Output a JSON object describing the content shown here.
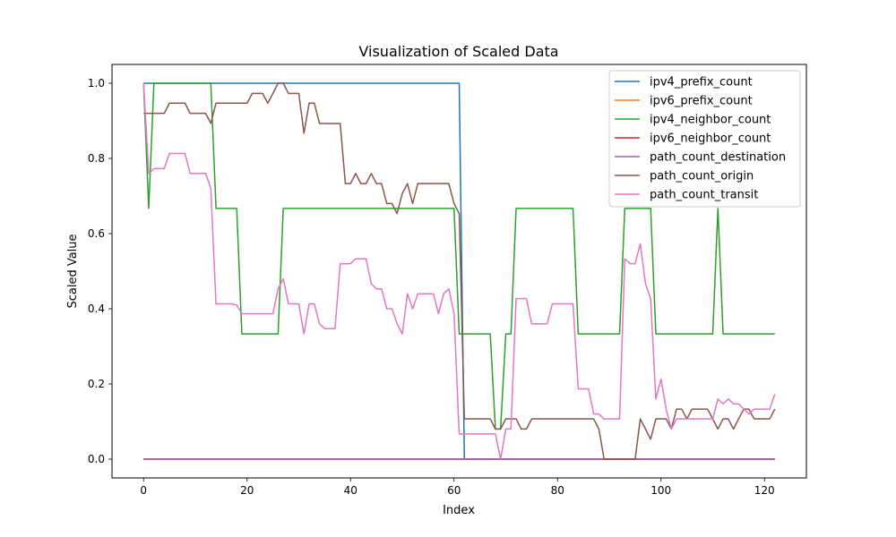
{
  "chart_data": {
    "type": "line",
    "title": "Visualization of Scaled Data",
    "xlabel": "Index",
    "ylabel": "Scaled Value",
    "xlim": [
      -6.1,
      128.1
    ],
    "ylim": [
      -0.05,
      1.05
    ],
    "xticks": [
      0,
      20,
      40,
      60,
      80,
      100,
      120
    ],
    "yticks": [
      0.0,
      0.2,
      0.4,
      0.6,
      0.8,
      1.0
    ],
    "xtick_labels": [
      "0",
      "20",
      "40",
      "60",
      "80",
      "100",
      "120"
    ],
    "ytick_labels": [
      "0.0",
      "0.2",
      "0.4",
      "0.6",
      "0.8",
      "1.0"
    ],
    "grid": false,
    "legend_position": "top-right",
    "series": [
      {
        "name": "ipv4_prefix_count",
        "color": "#1f77b4",
        "x": [
          0,
          61,
          62,
          122
        ],
        "y": [
          1.0,
          1.0,
          0.0,
          0.0
        ]
      },
      {
        "name": "ipv6_prefix_count",
        "color": "#ff7f0e",
        "x": [
          0,
          122
        ],
        "y": [
          0.0,
          0.0
        ]
      },
      {
        "name": "ipv4_neighbor_count",
        "color": "#2ca02c",
        "x": [
          0,
          1,
          2,
          13,
          14,
          18,
          19,
          26,
          27,
          60,
          61,
          67,
          68,
          69,
          70,
          71,
          72,
          83,
          84,
          92,
          93,
          98,
          99,
          110,
          111,
          112,
          122
        ],
        "y": [
          1.0,
          0.667,
          1.0,
          1.0,
          0.667,
          0.667,
          0.333,
          0.333,
          0.667,
          0.667,
          0.333,
          0.333,
          0.08,
          0.08,
          0.333,
          0.333,
          0.667,
          0.667,
          0.333,
          0.333,
          0.667,
          0.667,
          0.333,
          0.333,
          0.667,
          0.333,
          0.333
        ]
      },
      {
        "name": "ipv6_neighbor_count",
        "color": "#d62728",
        "x": [
          0,
          122
        ],
        "y": [
          0.0,
          0.0
        ]
      },
      {
        "name": "path_count_destination",
        "color": "#9467bd",
        "x": [
          0,
          122
        ],
        "y": [
          0.0,
          0.0
        ]
      },
      {
        "name": "path_count_origin",
        "color": "#8c564b",
        "x": [
          0,
          1,
          2,
          3,
          4,
          5,
          6,
          7,
          8,
          9,
          10,
          11,
          12,
          13,
          14,
          15,
          16,
          17,
          18,
          19,
          20,
          21,
          22,
          23,
          24,
          25,
          26,
          27,
          28,
          29,
          30,
          31,
          32,
          33,
          34,
          35,
          36,
          37,
          38,
          39,
          40,
          41,
          42,
          43,
          44,
          45,
          46,
          47,
          48,
          49,
          50,
          51,
          52,
          53,
          54,
          55,
          56,
          57,
          58,
          59,
          60,
          61,
          62,
          63,
          64,
          65,
          66,
          67,
          68,
          69,
          70,
          71,
          72,
          73,
          74,
          75,
          76,
          77,
          78,
          79,
          80,
          81,
          82,
          83,
          84,
          85,
          86,
          87,
          88,
          89,
          90,
          91,
          92,
          93,
          94,
          95,
          96,
          97,
          98,
          99,
          100,
          101,
          102,
          103,
          104,
          105,
          106,
          107,
          108,
          109,
          110,
          111,
          112,
          113,
          114,
          115,
          116,
          117,
          118,
          119,
          120,
          121,
          122
        ],
        "y": [
          0.92,
          0.92,
          0.92,
          0.92,
          0.92,
          0.947,
          0.947,
          0.947,
          0.947,
          0.92,
          0.92,
          0.92,
          0.92,
          0.893,
          0.947,
          0.947,
          0.947,
          0.947,
          0.947,
          0.947,
          0.947,
          0.973,
          0.973,
          0.973,
          0.947,
          0.973,
          1.0,
          1.0,
          0.973,
          0.973,
          0.973,
          0.867,
          0.947,
          0.947,
          0.893,
          0.893,
          0.893,
          0.893,
          0.893,
          0.733,
          0.733,
          0.76,
          0.733,
          0.733,
          0.76,
          0.733,
          0.733,
          0.68,
          0.68,
          0.653,
          0.707,
          0.733,
          0.68,
          0.733,
          0.733,
          0.733,
          0.733,
          0.733,
          0.733,
          0.733,
          0.68,
          0.653,
          0.107,
          0.107,
          0.107,
          0.107,
          0.107,
          0.107,
          0.08,
          0.08,
          0.107,
          0.107,
          0.107,
          0.08,
          0.08,
          0.107,
          0.107,
          0.107,
          0.107,
          0.107,
          0.107,
          0.107,
          0.107,
          0.107,
          0.107,
          0.107,
          0.107,
          0.107,
          0.08,
          0.0,
          0.0,
          0.0,
          0.0,
          0.0,
          0.0,
          0.0,
          0.107,
          0.08,
          0.053,
          0.107,
          0.107,
          0.107,
          0.08,
          0.133,
          0.133,
          0.107,
          0.133,
          0.133,
          0.133,
          0.133,
          0.107,
          0.08,
          0.107,
          0.107,
          0.08,
          0.107,
          0.133,
          0.133,
          0.107,
          0.107,
          0.107,
          0.107,
          0.133
        ]
      },
      {
        "name": "path_count_transit",
        "color": "#e377c2",
        "x": [
          0,
          1,
          2,
          3,
          4,
          5,
          6,
          7,
          8,
          9,
          10,
          11,
          12,
          13,
          14,
          15,
          16,
          17,
          18,
          19,
          20,
          21,
          22,
          23,
          24,
          25,
          26,
          27,
          28,
          29,
          30,
          31,
          32,
          33,
          34,
          35,
          36,
          37,
          38,
          39,
          40,
          41,
          42,
          43,
          44,
          45,
          46,
          47,
          48,
          49,
          50,
          51,
          52,
          53,
          54,
          55,
          56,
          57,
          58,
          59,
          60,
          61,
          62,
          63,
          64,
          65,
          66,
          67,
          68,
          69,
          70,
          71,
          72,
          73,
          74,
          75,
          76,
          77,
          78,
          79,
          80,
          81,
          82,
          83,
          84,
          85,
          86,
          87,
          88,
          89,
          90,
          91,
          92,
          93,
          94,
          95,
          96,
          97,
          98,
          99,
          100,
          101,
          102,
          103,
          104,
          105,
          106,
          107,
          108,
          109,
          110,
          111,
          112,
          113,
          114,
          115,
          116,
          117,
          118,
          119,
          120,
          121,
          122
        ],
        "y": [
          1.0,
          0.76,
          0.773,
          0.773,
          0.773,
          0.813,
          0.813,
          0.813,
          0.813,
          0.76,
          0.76,
          0.76,
          0.76,
          0.72,
          0.413,
          0.413,
          0.413,
          0.413,
          0.41,
          0.387,
          0.387,
          0.387,
          0.387,
          0.387,
          0.387,
          0.387,
          0.453,
          0.48,
          0.413,
          0.413,
          0.413,
          0.333,
          0.413,
          0.413,
          0.36,
          0.347,
          0.347,
          0.347,
          0.52,
          0.52,
          0.52,
          0.533,
          0.533,
          0.533,
          0.467,
          0.453,
          0.453,
          0.4,
          0.4,
          0.36,
          0.333,
          0.44,
          0.4,
          0.44,
          0.44,
          0.44,
          0.44,
          0.387,
          0.44,
          0.453,
          0.387,
          0.067,
          0.067,
          0.067,
          0.067,
          0.067,
          0.067,
          0.067,
          0.067,
          0.0,
          0.08,
          0.08,
          0.427,
          0.427,
          0.427,
          0.36,
          0.36,
          0.36,
          0.36,
          0.413,
          0.413,
          0.413,
          0.413,
          0.413,
          0.187,
          0.187,
          0.187,
          0.12,
          0.12,
          0.107,
          0.107,
          0.107,
          0.107,
          0.533,
          0.52,
          0.52,
          0.573,
          0.467,
          0.427,
          0.16,
          0.213,
          0.133,
          0.08,
          0.107,
          0.107,
          0.107,
          0.107,
          0.107,
          0.107,
          0.107,
          0.107,
          0.16,
          0.147,
          0.16,
          0.147,
          0.147,
          0.133,
          0.12,
          0.133,
          0.133,
          0.133,
          0.133,
          0.173
        ]
      }
    ]
  }
}
